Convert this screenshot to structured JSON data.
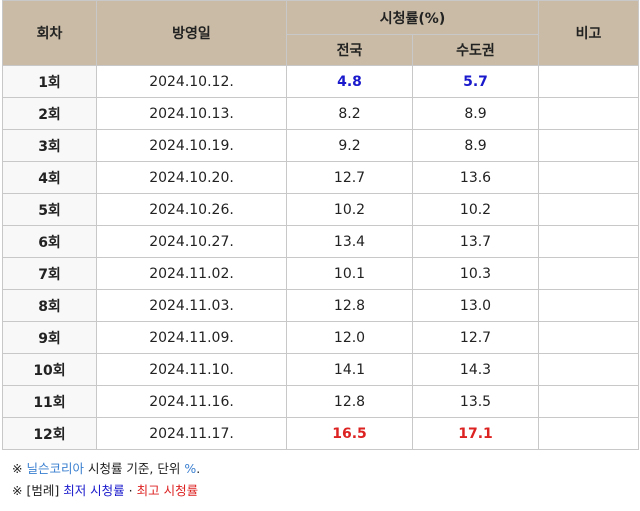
{
  "header": {
    "episode": "회차",
    "airdate": "방영일",
    "ratings": "시청률(%)",
    "national": "전국",
    "capital": "수도권",
    "remarks": "비고"
  },
  "rows": [
    {
      "ep": "1회",
      "date": "2024.10.12.",
      "nat": "4.8",
      "cap": "5.7",
      "nat_class": "low",
      "cap_class": "low"
    },
    {
      "ep": "2회",
      "date": "2024.10.13.",
      "nat": "8.2",
      "cap": "8.9",
      "nat_class": "",
      "cap_class": ""
    },
    {
      "ep": "3회",
      "date": "2024.10.19.",
      "nat": "9.2",
      "cap": "8.9",
      "nat_class": "",
      "cap_class": ""
    },
    {
      "ep": "4회",
      "date": "2024.10.20.",
      "nat": "12.7",
      "cap": "13.6",
      "nat_class": "",
      "cap_class": ""
    },
    {
      "ep": "5회",
      "date": "2024.10.26.",
      "nat": "10.2",
      "cap": "10.2",
      "nat_class": "",
      "cap_class": ""
    },
    {
      "ep": "6회",
      "date": "2024.10.27.",
      "nat": "13.4",
      "cap": "13.7",
      "nat_class": "",
      "cap_class": ""
    },
    {
      "ep": "7회",
      "date": "2024.11.02.",
      "nat": "10.1",
      "cap": "10.3",
      "nat_class": "",
      "cap_class": ""
    },
    {
      "ep": "8회",
      "date": "2024.11.03.",
      "nat": "12.8",
      "cap": "13.0",
      "nat_class": "",
      "cap_class": ""
    },
    {
      "ep": "9회",
      "date": "2024.11.09.",
      "nat": "12.0",
      "cap": "12.7",
      "nat_class": "",
      "cap_class": ""
    },
    {
      "ep": "10회",
      "date": "2024.11.10.",
      "nat": "14.1",
      "cap": "14.3",
      "nat_class": "",
      "cap_class": ""
    },
    {
      "ep": "11회",
      "date": "2024.11.16.",
      "nat": "12.8",
      "cap": "13.5",
      "nat_class": "",
      "cap_class": ""
    },
    {
      "ep": "12회",
      "date": "2024.11.17.",
      "nat": "16.5",
      "cap": "17.1",
      "nat_class": "high",
      "cap_class": "high"
    }
  ],
  "notes": {
    "mark": "※",
    "n1_source": "닐슨코리아",
    "n1_rest": " 시청률 기준, 단위 ",
    "n1_unit": "%",
    "n1_end": ".",
    "n2_legend": " [범례] ",
    "n2_low": "최저 시청률",
    "n2_sep": " · ",
    "n2_high": "최고 시청률"
  },
  "colors": {
    "header_bg": "#c9bba5",
    "low": "#1a1acc",
    "high": "#dd2222",
    "link": "#3a7fd0"
  }
}
